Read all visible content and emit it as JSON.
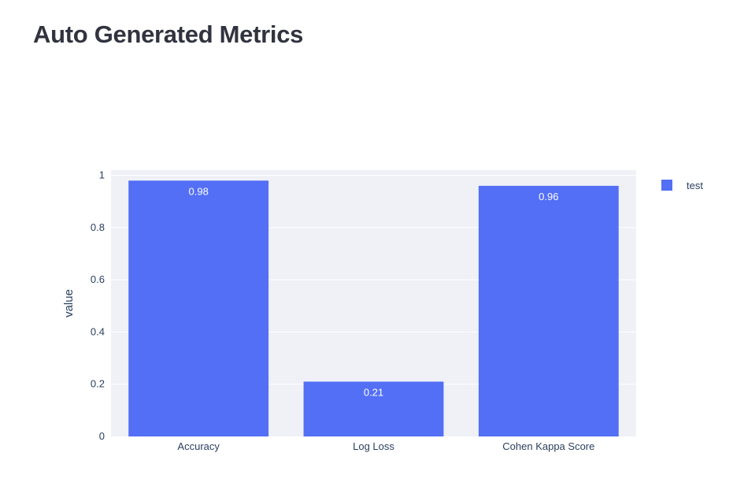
{
  "page": {
    "title": "Auto Generated Metrics"
  },
  "chart_data": {
    "type": "bar",
    "categories": [
      "Accuracy",
      "Log Loss",
      "Cohen Kappa Score"
    ],
    "series": [
      {
        "name": "test",
        "values": [
          0.98,
          0.21,
          0.96
        ],
        "color": "#536ff6"
      }
    ],
    "data_labels": [
      "0.98",
      "0.21",
      "0.96"
    ],
    "xlabel": "",
    "ylabel": "value",
    "ylim": [
      0,
      1.02
    ],
    "yticks": [
      0,
      0.2,
      0.4,
      0.6,
      0.8,
      1
    ],
    "ytick_labels": [
      "0",
      "0.2",
      "0.4",
      "0.6",
      "0.8",
      "1"
    ],
    "grid": true,
    "plot_background": "#e5ecf6",
    "legend_position": "top-right"
  }
}
